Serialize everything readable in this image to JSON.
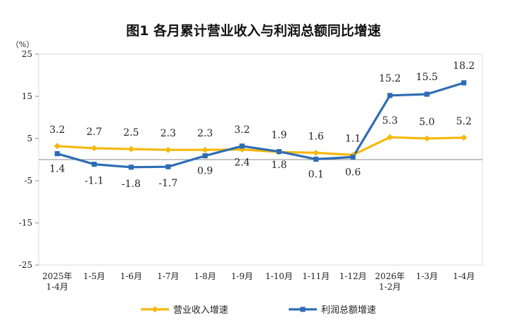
{
  "chart_data": {
    "type": "line",
    "title": "图1  各月累计营业收入与利润总额同比增速",
    "unit_label": "（%）",
    "categories": [
      [
        "2025年",
        "1-4月"
      ],
      [
        "1-5月"
      ],
      [
        "1-6月"
      ],
      [
        "1-7月"
      ],
      [
        "1-8月"
      ],
      [
        "1-9月"
      ],
      [
        "1-10月"
      ],
      [
        "1-11月"
      ],
      [
        "1-12月"
      ],
      [
        "2026年",
        "1-2月"
      ],
      [
        "1-3月"
      ],
      [
        "1-4月"
      ]
    ],
    "ylim": [
      -25,
      25
    ],
    "yticks": [
      25,
      15,
      5,
      -5,
      -15,
      -25
    ],
    "grid": false,
    "legend_position": "bottom",
    "series": [
      {
        "name": "营业收入增速",
        "color": "#F5B80C",
        "marker": "diamond",
        "values": [
          3.2,
          2.7,
          2.5,
          2.3,
          2.3,
          2.4,
          1.8,
          1.6,
          1.1,
          5.3,
          5.0,
          5.2
        ],
        "labels": [
          "3.2",
          "2.7",
          "2.5",
          "2.3",
          "2.3",
          "2.4",
          "1.8",
          "1.6",
          "1.1",
          "5.3",
          "5.0",
          "5.2"
        ]
      },
      {
        "name": "利润总额增速",
        "color": "#2E6DB4",
        "marker": "square",
        "values": [
          1.4,
          -1.1,
          -1.8,
          -1.7,
          0.9,
          3.2,
          1.9,
          0.1,
          0.6,
          15.2,
          15.5,
          18.2
        ],
        "labels": [
          "1.4",
          "-1.1",
          "-1.8",
          "-1.7",
          "0.9",
          "3.2",
          "1.9",
          "0.1",
          "0.6",
          "15.2",
          "15.5",
          "18.2"
        ]
      }
    ]
  }
}
